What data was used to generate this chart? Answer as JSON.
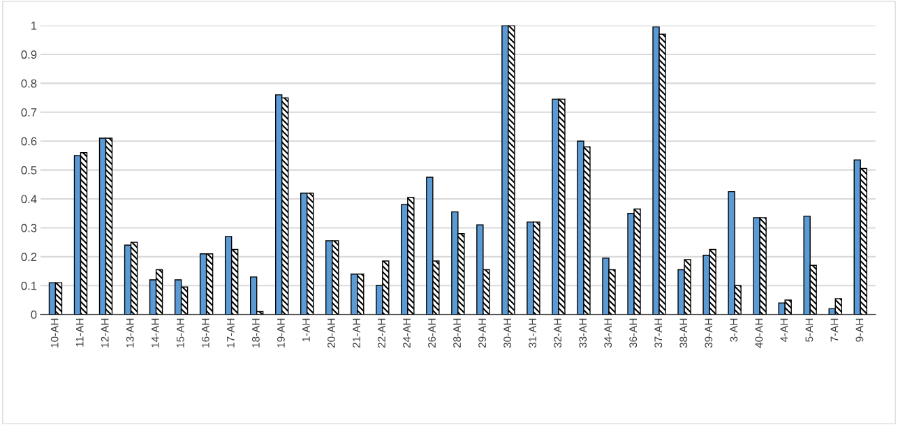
{
  "chart_data": {
    "type": "bar",
    "categories": [
      "10-AH",
      "11-AH",
      "12-AH",
      "13-AH",
      "14-AH",
      "15-AH",
      "16-AH",
      "17-AH",
      "18-AH",
      "19-AH",
      "1-AH",
      "20-AH",
      "21-AH",
      "22-AH",
      "24-AH",
      "26-AH",
      "28-AH",
      "29-AH",
      "30-AH",
      "31-AH",
      "32-AH",
      "33-AH",
      "34-AH",
      "36-AH",
      "37-AH",
      "38-AH",
      "39-AH",
      "3-AH",
      "40-AH",
      "4-AH",
      "5-AH",
      "7-AH",
      "9-AH"
    ],
    "series": [
      {
        "color": "#5b9bd5",
        "values": [
          0.11,
          0.55,
          0.61,
          0.24,
          0.12,
          0.12,
          0.21,
          0.27,
          0.13,
          0.76,
          0.42,
          0.255,
          0.14,
          0.1,
          0.38,
          0.475,
          0.355,
          0.31,
          1.0,
          0.32,
          0.745,
          0.6,
          0.195,
          0.35,
          0.995,
          0.155,
          0.205,
          0.425,
          0.335,
          0.04,
          0.34,
          0.02,
          0.535
        ]
      },
      {
        "color": "#000000",
        "values": [
          0.11,
          0.56,
          0.61,
          0.25,
          0.155,
          0.095,
          0.21,
          0.225,
          0.01,
          0.75,
          0.42,
          0.255,
          0.14,
          0.185,
          0.405,
          0.185,
          0.28,
          0.155,
          1.0,
          0.32,
          0.745,
          0.58,
          0.155,
          0.365,
          0.97,
          0.19,
          0.225,
          0.1,
          0.335,
          0.05,
          0.17,
          0.055,
          0.505
        ]
      }
    ],
    "ylim": [
      0,
      1
    ],
    "yticks": [
      0,
      0.1,
      0.2,
      0.3,
      0.4,
      0.5,
      0.6,
      0.7,
      0.8,
      0.9,
      1
    ],
    "grid": "y"
  }
}
